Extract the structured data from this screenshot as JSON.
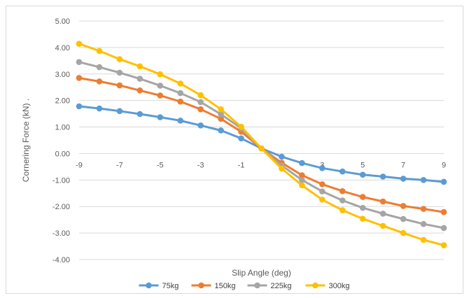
{
  "chart_data": {
    "type": "line",
    "title": "",
    "xlabel": "Slip Angle (deg)",
    "ylabel": "Cornering Force (kN) .",
    "x": [
      -9,
      -8,
      -7,
      -6,
      -5,
      -4,
      -3,
      -2,
      -1,
      0,
      1,
      2,
      3,
      4,
      5,
      6,
      7,
      8,
      9
    ],
    "xticks": [
      -9,
      -7,
      -5,
      -3,
      -1,
      1,
      3,
      5,
      7,
      9
    ],
    "ylim": [
      -4,
      5
    ],
    "yticks": [
      "5.00",
      "4.00",
      "3.00",
      "2.00",
      "1.00",
      "0.00",
      "-1.00",
      "-2.00",
      "-3.00",
      "-4.00"
    ],
    "grid": "horizontal",
    "legend": "bottom",
    "series": [
      {
        "name": "75kg",
        "color": "#5b9bd5",
        "values": [
          1.78,
          1.7,
          1.6,
          1.49,
          1.37,
          1.24,
          1.06,
          0.87,
          0.57,
          0.19,
          -0.12,
          -0.36,
          -0.55,
          -0.68,
          -0.8,
          -0.87,
          -0.95,
          -1.0,
          -1.07
        ]
      },
      {
        "name": "150kg",
        "color": "#ed7d31",
        "values": [
          2.85,
          2.72,
          2.57,
          2.38,
          2.19,
          1.96,
          1.67,
          1.31,
          0.82,
          0.19,
          -0.35,
          -0.82,
          -1.16,
          -1.42,
          -1.64,
          -1.81,
          -1.98,
          -2.09,
          -2.21
        ]
      },
      {
        "name": "225kg",
        "color": "#a5a5a5",
        "values": [
          3.45,
          3.26,
          3.05,
          2.82,
          2.56,
          2.28,
          1.94,
          1.48,
          0.95,
          0.19,
          -0.45,
          -1.0,
          -1.43,
          -1.77,
          -2.05,
          -2.27,
          -2.47,
          -2.66,
          -2.81
        ]
      },
      {
        "name": "300kg",
        "color": "#ffc000",
        "values": [
          4.14,
          3.87,
          3.56,
          3.29,
          2.99,
          2.64,
          2.2,
          1.67,
          1.01,
          0.19,
          -0.57,
          -1.2,
          -1.74,
          -2.14,
          -2.46,
          -2.73,
          -3.0,
          -3.26,
          -3.46
        ]
      }
    ]
  }
}
